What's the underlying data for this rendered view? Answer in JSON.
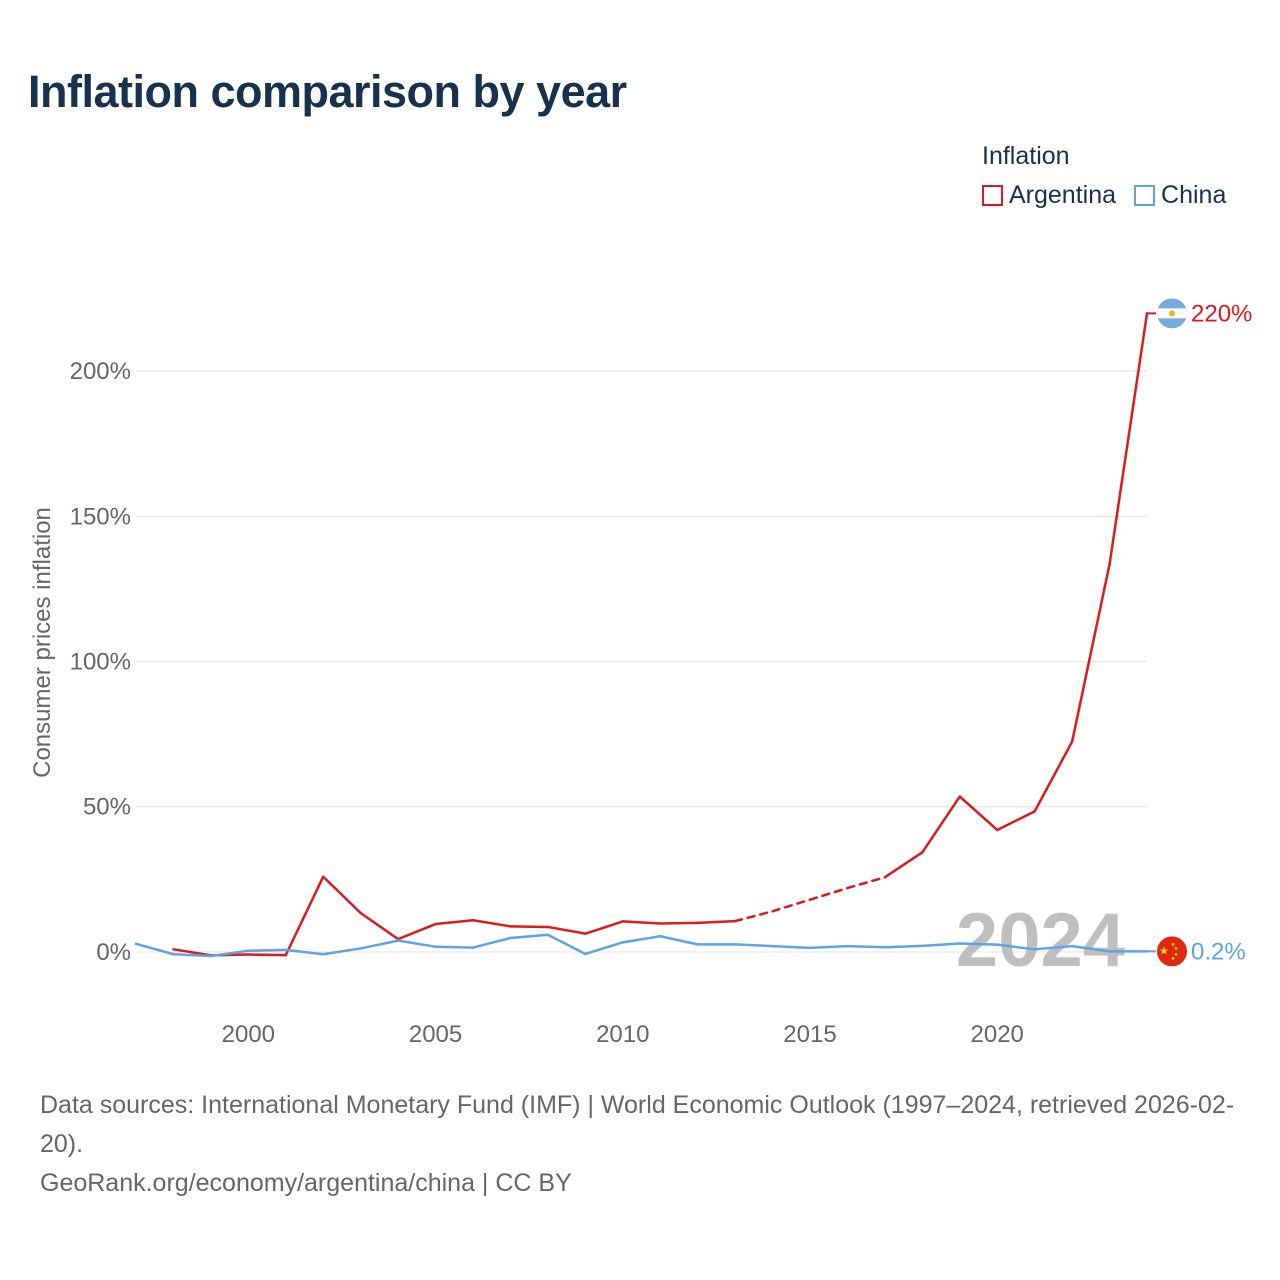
{
  "title": "Inflation comparison by year",
  "legend": {
    "title": "Inflation",
    "items": [
      {
        "label": "Argentina",
        "color": "#e0191c"
      },
      {
        "label": "China",
        "color": "#5ba4e6"
      }
    ]
  },
  "footer": {
    "sources": "Data sources: International Monetary Fund (IMF) | World Economic Outlook (1997–2024, retrieved 2026-02-20).",
    "credit": "GeoRank.org/economy/argentina/china | CC BY"
  },
  "chart_data": {
    "type": "line",
    "title": "Inflation comparison by year",
    "xlabel": "",
    "ylabel": "Consumer prices inflation",
    "xlim": [
      1997,
      2024
    ],
    "ylim": [
      -20,
      240
    ],
    "x_ticks": [
      {
        "value": 2000,
        "label": "2000"
      },
      {
        "value": 2005,
        "label": "2005"
      },
      {
        "value": 2010,
        "label": "2010"
      },
      {
        "value": 2015,
        "label": "2015"
      },
      {
        "value": 2020,
        "label": "2020"
      }
    ],
    "y_ticks": [
      {
        "value": 0,
        "label": "0%"
      },
      {
        "value": 50,
        "label": "50%"
      },
      {
        "value": 100,
        "label": "100%"
      },
      {
        "value": 150,
        "label": "150%"
      },
      {
        "value": 200,
        "label": "200%"
      }
    ],
    "grid": true,
    "current_year": "2024",
    "series": [
      {
        "name": "Argentina",
        "color": "#e0191c",
        "end_label": "220%",
        "flag": "argentina-flag",
        "estimated_years": [
          2014,
          2015,
          2016
        ],
        "points": [
          [
            1998,
            0.9
          ],
          [
            1999,
            -1.2
          ],
          [
            2000,
            -0.9
          ],
          [
            2001,
            -1.1
          ],
          [
            2002,
            25.9
          ],
          [
            2003,
            13.4
          ],
          [
            2004,
            4.4
          ],
          [
            2005,
            9.6
          ],
          [
            2006,
            10.9
          ],
          [
            2007,
            8.8
          ],
          [
            2008,
            8.6
          ],
          [
            2009,
            6.3
          ],
          [
            2010,
            10.5
          ],
          [
            2011,
            9.8
          ],
          [
            2012,
            10.0
          ],
          [
            2013,
            10.6
          ],
          [
            2014,
            14.0
          ],
          [
            2015,
            18.0
          ],
          [
            2016,
            22.0
          ],
          [
            2017,
            25.7
          ],
          [
            2018,
            34.3
          ],
          [
            2019,
            53.5
          ],
          [
            2020,
            42.0
          ],
          [
            2021,
            48.4
          ],
          [
            2022,
            72.4
          ],
          [
            2023,
            133.5
          ],
          [
            2024,
            219.9
          ]
        ]
      },
      {
        "name": "China",
        "color": "#5ba4e6",
        "end_label": "0.2%",
        "flag": "china-flag",
        "estimated_years": [],
        "points": [
          [
            1997,
            2.8
          ],
          [
            1998,
            -0.8
          ],
          [
            1999,
            -1.4
          ],
          [
            2000,
            0.4
          ],
          [
            2001,
            0.7
          ],
          [
            2002,
            -0.8
          ],
          [
            2003,
            1.2
          ],
          [
            2004,
            3.9
          ],
          [
            2005,
            1.8
          ],
          [
            2006,
            1.5
          ],
          [
            2007,
            4.8
          ],
          [
            2008,
            5.9
          ],
          [
            2009,
            -0.7
          ],
          [
            2010,
            3.3
          ],
          [
            2011,
            5.4
          ],
          [
            2012,
            2.6
          ],
          [
            2013,
            2.6
          ],
          [
            2014,
            2.0
          ],
          [
            2015,
            1.4
          ],
          [
            2016,
            2.0
          ],
          [
            2017,
            1.6
          ],
          [
            2018,
            2.1
          ],
          [
            2019,
            2.9
          ],
          [
            2020,
            2.5
          ],
          [
            2021,
            0.9
          ],
          [
            2022,
            2.0
          ],
          [
            2023,
            0.2
          ],
          [
            2024,
            0.2
          ]
        ]
      }
    ]
  }
}
